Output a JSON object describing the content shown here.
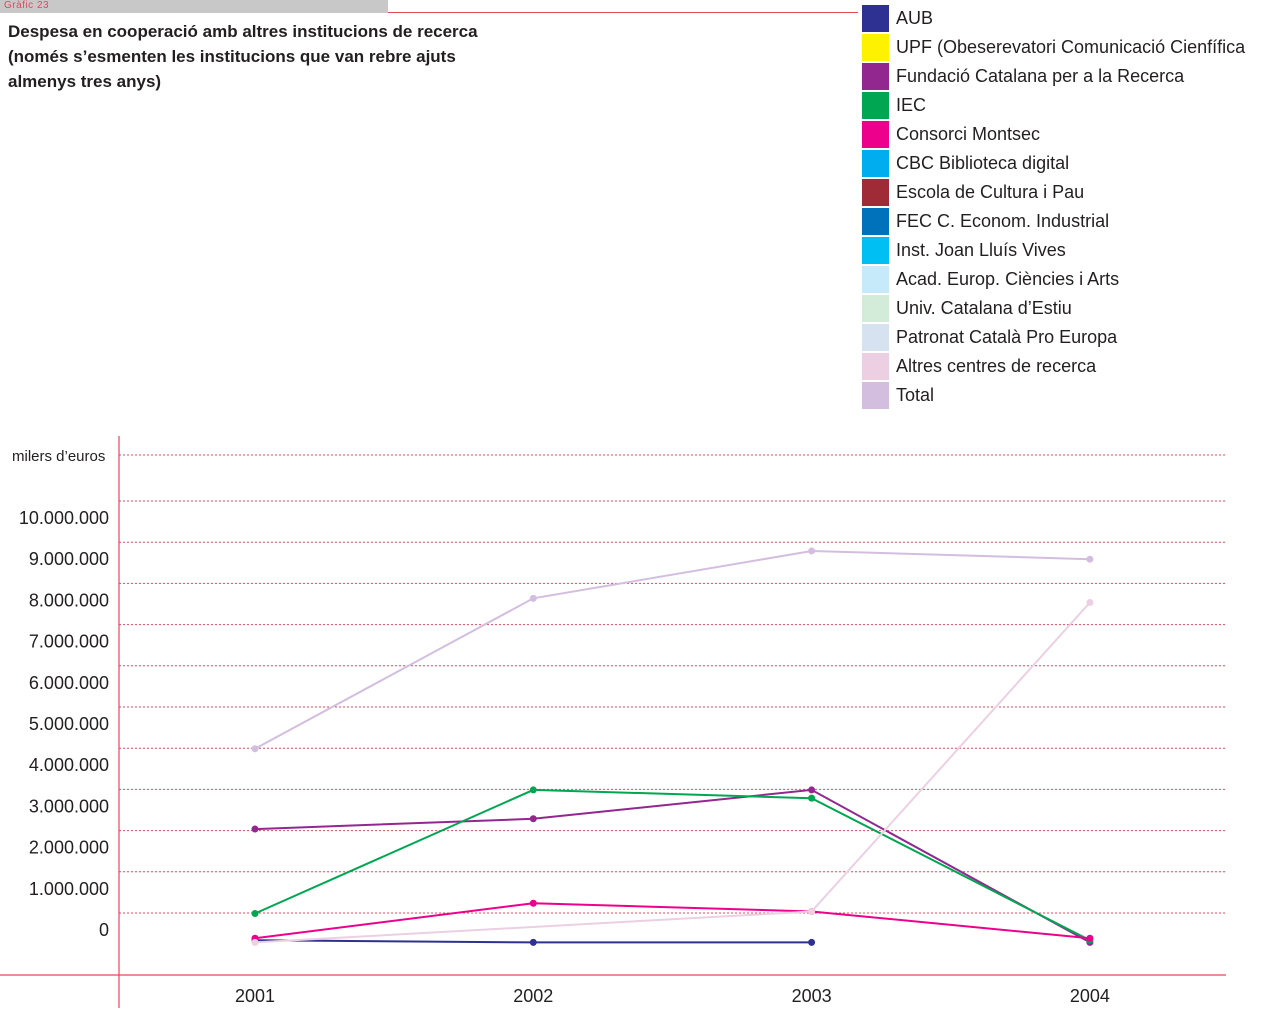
{
  "header": {
    "tag": "Gràfic 23"
  },
  "chart_data": {
    "type": "line",
    "title_lines": [
      "Despesa en cooperació amb altres institucions de recerca",
      "(només s’esmenten les institucions que van rebre ajuts",
      "almenys tres anys)"
    ],
    "ylabel": "milers d’euros",
    "xlabel": "",
    "x": [
      "2001",
      "2002",
      "2003",
      "2004"
    ],
    "ylim": [
      -300000,
      10500000
    ],
    "yticks": [
      {
        "value": 0,
        "label": "0"
      },
      {
        "value": 1000000,
        "label": "1.000.000"
      },
      {
        "value": 2000000,
        "label": "2.000.000"
      },
      {
        "value": 3000000,
        "label": "3.000.000"
      },
      {
        "value": 4000000,
        "label": "4.000.000"
      },
      {
        "value": 5000000,
        "label": "5.000.000"
      },
      {
        "value": 6000000,
        "label": "6.000.000"
      },
      {
        "value": 7000000,
        "label": "7.000.000"
      },
      {
        "value": 8000000,
        "label": "8.000.000"
      },
      {
        "value": 9000000,
        "label": "9.000.000"
      },
      {
        "value": 10000000,
        "label": "10.000.000"
      }
    ],
    "grid": true,
    "legend_position": "top-right",
    "series": [
      {
        "name": "AUB",
        "color": "#2e3192",
        "values": [
          -250000,
          -300000,
          -300000,
          null
        ]
      },
      {
        "name": "UPF (Obeserevatori Comunicació Cienfífica",
        "color": "#fff200",
        "values": [
          null,
          null,
          null,
          null
        ]
      },
      {
        "name": "Fundació Catalana per a la Recerca",
        "color": "#92278f",
        "values": [
          2450000,
          2700000,
          3400000,
          -300000
        ]
      },
      {
        "name": "IEC",
        "color": "#00a651",
        "values": [
          400000,
          3400000,
          3200000,
          -250000
        ]
      },
      {
        "name": "Consorci Montsec",
        "color": "#ec008c",
        "values": [
          -200000,
          650000,
          450000,
          -200000
        ]
      },
      {
        "name": "CBC Biblioteca digital",
        "color": "#00aeef",
        "values": [
          null,
          null,
          null,
          null
        ]
      },
      {
        "name": "Escola de Cultura i Pau",
        "color": "#9e2b35",
        "values": [
          null,
          null,
          null,
          null
        ]
      },
      {
        "name": "FEC C. Econom. Industrial",
        "color": "#0072bc",
        "values": [
          null,
          null,
          null,
          null
        ]
      },
      {
        "name": "Inst. Joan Lluís Vives",
        "color": "#00bff3",
        "values": [
          null,
          null,
          null,
          null
        ]
      },
      {
        "name": "Acad. Europ. Ciències i Arts",
        "color": "#c7eafb",
        "values": [
          null,
          null,
          null,
          null
        ]
      },
      {
        "name": "Univ. Catalana d’Estiu",
        "color": "#d3ecd9",
        "values": [
          null,
          null,
          null,
          null
        ]
      },
      {
        "name": "Patronat Català Pro Europa",
        "color": "#d6e2f0",
        "values": [
          null,
          null,
          null,
          null
        ]
      },
      {
        "name": "Altres centres de recerca",
        "color": "#eccfe3",
        "values": [
          -300000,
          null,
          450000,
          7950000
        ]
      },
      {
        "name": "Total",
        "color": "#d4bedf",
        "values": [
          4400000,
          8050000,
          9200000,
          9000000
        ]
      }
    ]
  }
}
